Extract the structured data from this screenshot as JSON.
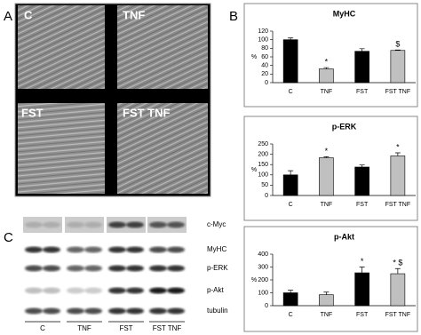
{
  "panels": [
    "A",
    "B",
    "C"
  ],
  "micrographs": [
    "C",
    "TNF",
    "FST",
    "FST TNF"
  ],
  "blot": {
    "rows": [
      "c-Myc",
      "MyHC",
      "p-ERK",
      "p-Akt",
      "tubulin"
    ],
    "lanes": [
      "C",
      "TNF",
      "FST",
      "FST TNF"
    ]
  },
  "chart_data": [
    {
      "type": "bar",
      "title": "MyHC",
      "y_label": "%",
      "categories": [
        "C",
        "TNF",
        "FST",
        "FST TNF"
      ],
      "values": [
        100,
        32,
        73,
        75
      ],
      "errors": [
        4,
        3,
        6,
        1
      ],
      "colors": [
        "#000000",
        "#c0c0c0",
        "#000000",
        "#c0c0c0"
      ],
      "ylim": [
        0,
        120
      ],
      "yticks": [
        0,
        20,
        40,
        60,
        80,
        100,
        120
      ],
      "annotations": [
        {
          "category": "TNF",
          "text": "*"
        },
        {
          "category": "FST TNF",
          "text": "$"
        }
      ]
    },
    {
      "type": "bar",
      "title": "p-ERK",
      "y_label": "%",
      "categories": [
        "C",
        "TNF",
        "FST",
        "FST TNF"
      ],
      "values": [
        100,
        183,
        138,
        192
      ],
      "errors": [
        20,
        5,
        10,
        15
      ],
      "colors": [
        "#000000",
        "#c0c0c0",
        "#000000",
        "#c0c0c0"
      ],
      "ylim": [
        0,
        250
      ],
      "yticks": [
        0,
        50,
        100,
        150,
        200,
        250
      ],
      "annotations": [
        {
          "category": "TNF",
          "text": "*"
        },
        {
          "category": "FST TNF",
          "text": "*"
        }
      ]
    },
    {
      "type": "bar",
      "title": "p-Akt",
      "y_label": "%",
      "categories": [
        "C",
        "TNF",
        "FST",
        "FST TNF"
      ],
      "values": [
        100,
        85,
        255,
        248
      ],
      "errors": [
        20,
        20,
        45,
        40
      ],
      "colors": [
        "#000000",
        "#c0c0c0",
        "#000000",
        "#c0c0c0"
      ],
      "ylim": [
        0,
        400
      ],
      "yticks": [
        0,
        100,
        200,
        300,
        400
      ],
      "annotations": [
        {
          "category": "FST",
          "text": "*"
        },
        {
          "category": "FST TNF",
          "text": "* $"
        }
      ]
    }
  ]
}
